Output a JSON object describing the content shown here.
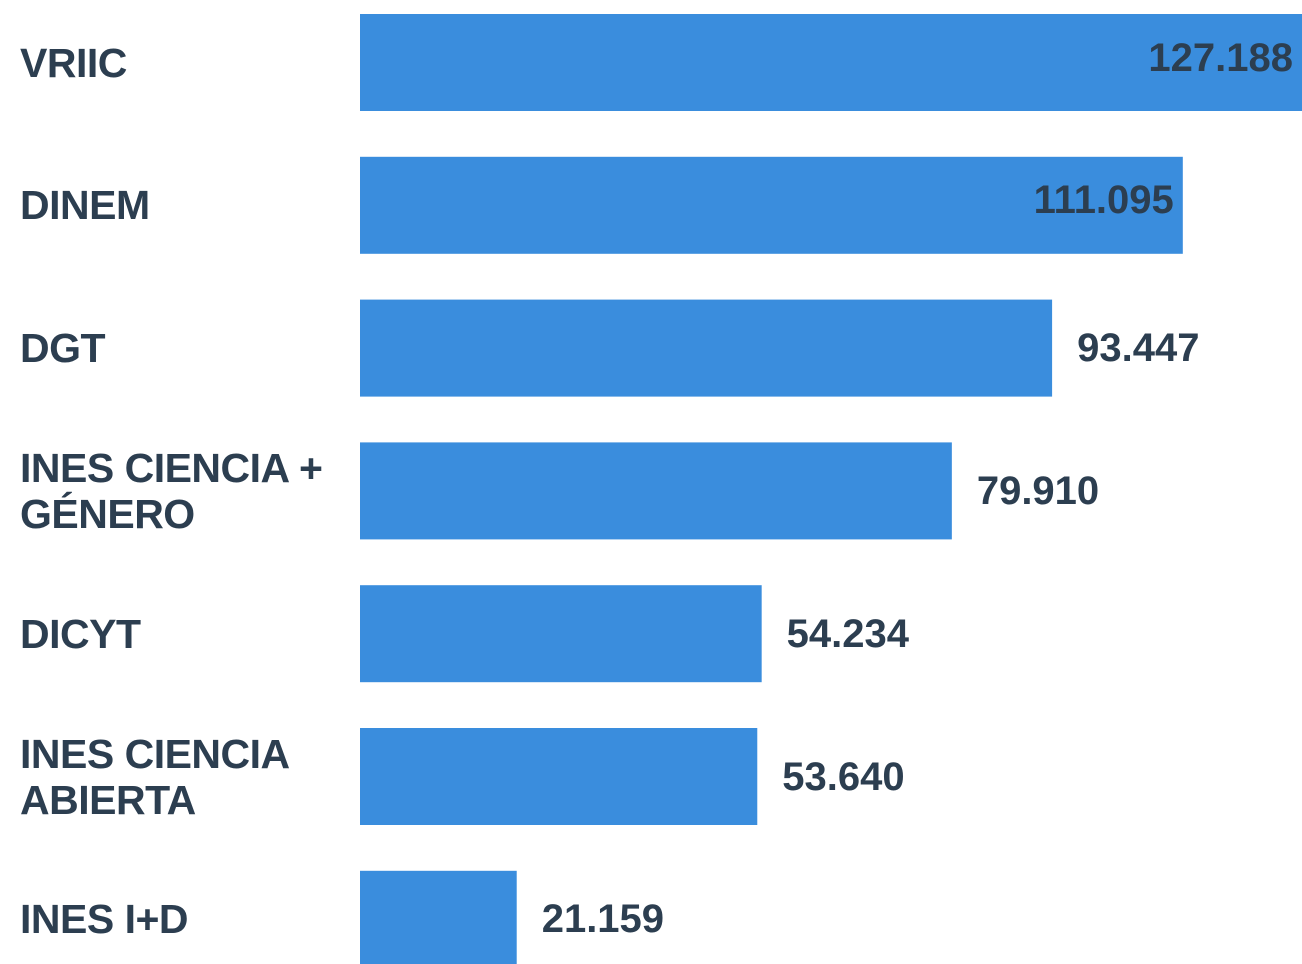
{
  "chart_data": {
    "type": "bar",
    "orientation": "horizontal",
    "categories": [
      "VRIIC",
      "DINEM",
      "DGT",
      "INES CIENCIA + GÉNERO",
      "DICYT",
      "INES CIENCIA ABIERTA",
      "INES I+D"
    ],
    "values": [
      127188,
      111095,
      93447,
      79910,
      54234,
      53640,
      21159
    ],
    "value_labels": [
      "127.188",
      "111.095",
      "93.447",
      "79.910",
      "54.234",
      "53.640",
      "21.159"
    ],
    "color": "#3a8ddd"
  }
}
